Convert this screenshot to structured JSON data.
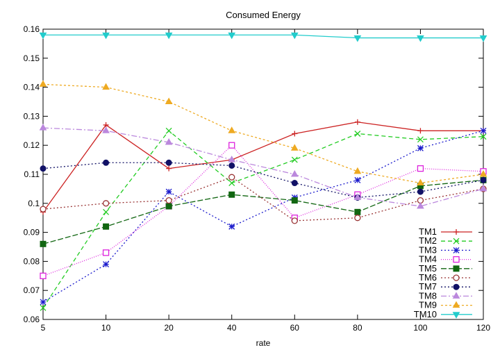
{
  "chart_data": {
    "type": "line",
    "title": "Consumed Energy",
    "xlabel": "rate",
    "ylabel": "",
    "categories": [
      "5",
      "10",
      "20",
      "40",
      "60",
      "80",
      "100",
      "120"
    ],
    "ylim": [
      0.06,
      0.16
    ],
    "yticks": [
      "0.06",
      "0.07",
      "0.08",
      "0.09",
      "0.1",
      "0.11",
      "0.12",
      "0.13",
      "0.14",
      "0.15",
      "0.16"
    ],
    "grid": false,
    "legend": "bottom-right",
    "series": [
      {
        "name": "TM1",
        "color": "#cc2222",
        "dash": "",
        "marker": "plus",
        "values": [
          0.097,
          0.127,
          0.112,
          0.115,
          0.124,
          0.128,
          0.125,
          0.125
        ]
      },
      {
        "name": "TM2",
        "color": "#22cc22",
        "dash": "6,4",
        "marker": "cross",
        "values": [
          0.064,
          0.097,
          0.125,
          0.107,
          0.115,
          0.124,
          0.122,
          0.123
        ]
      },
      {
        "name": "TM3",
        "color": "#1a1acc",
        "dash": "2,3",
        "marker": "star",
        "values": [
          0.066,
          0.079,
          0.104,
          0.092,
          0.102,
          0.108,
          0.119,
          0.125
        ]
      },
      {
        "name": "TM4",
        "color": "#dd22dd",
        "dash": "1,2",
        "marker": "square-open",
        "values": [
          0.075,
          0.083,
          0.099,
          0.12,
          0.095,
          0.103,
          0.112,
          0.111
        ]
      },
      {
        "name": "TM5",
        "color": "#116611",
        "dash": "8,3",
        "marker": "square-filled",
        "values": [
          0.086,
          0.092,
          0.099,
          0.103,
          0.101,
          0.097,
          0.106,
          0.108
        ]
      },
      {
        "name": "TM6",
        "color": "#993333",
        "dash": "2,3",
        "marker": "circle-open",
        "values": [
          0.098,
          0.1,
          0.101,
          0.109,
          0.094,
          0.095,
          0.101,
          0.105
        ]
      },
      {
        "name": "TM7",
        "color": "#111166",
        "dash": "2,3",
        "marker": "circle-filled",
        "values": [
          0.112,
          0.114,
          0.114,
          0.113,
          0.107,
          0.102,
          0.104,
          0.108
        ]
      },
      {
        "name": "TM8",
        "color": "#bb88dd",
        "dash": "8,3,2,3",
        "marker": "triangle-up",
        "values": [
          0.126,
          0.125,
          0.121,
          0.115,
          0.11,
          0.102,
          0.099,
          0.105
        ]
      },
      {
        "name": "TM9",
        "color": "#eeaa22",
        "dash": "3,3",
        "marker": "triangle-up",
        "values": [
          0.141,
          0.14,
          0.135,
          0.125,
          0.119,
          0.111,
          0.107,
          0.11
        ]
      },
      {
        "name": "TM10",
        "color": "#22cccc",
        "dash": "",
        "marker": "triangle-down",
        "values": [
          0.158,
          0.158,
          0.158,
          0.158,
          0.158,
          0.157,
          0.157,
          0.157
        ]
      }
    ]
  }
}
